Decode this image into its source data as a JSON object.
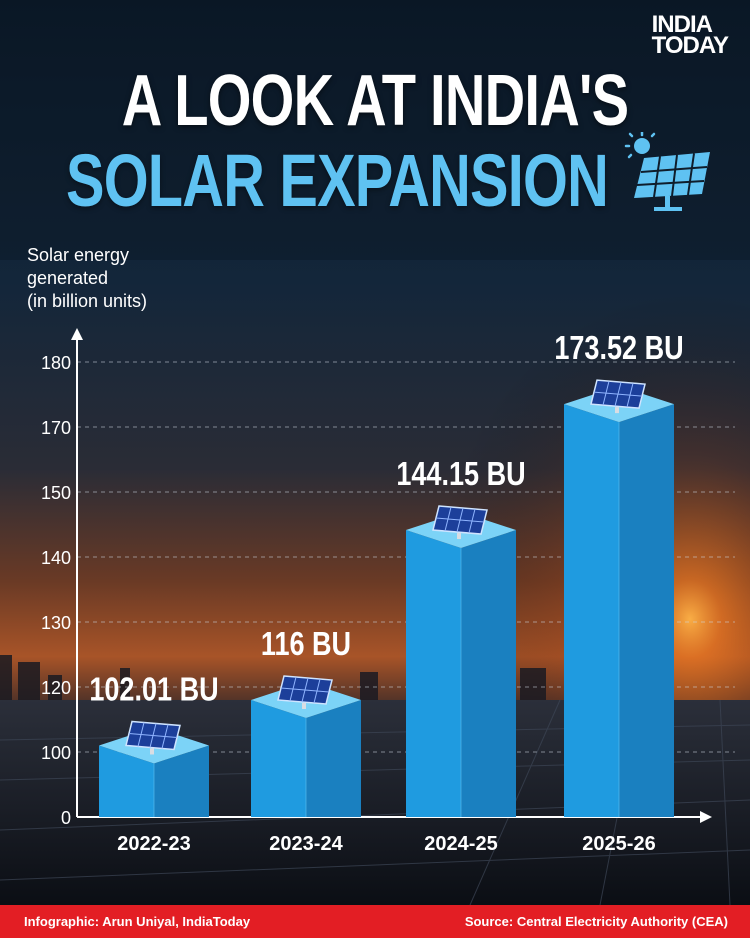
{
  "brand": {
    "line1": "INDIA",
    "line2": "TODAY"
  },
  "header": {
    "title_line1": "A LOOK AT INDIA'S",
    "title_line2": "SOLAR EXPANSION",
    "icon": "solar-panel-sun-icon"
  },
  "colors": {
    "title_accent": "#5fc2f2",
    "bar_front": "#1f9be0",
    "bar_side": "#1a80c0",
    "bar_top": "#7cd3f7",
    "footer": "#e31e24",
    "grid": "#cfd8e3"
  },
  "chart_data": {
    "type": "bar",
    "title": "A LOOK AT INDIA'S SOLAR EXPANSION",
    "ylabel_lines": [
      "Solar energy",
      "generated",
      "(in billion units)"
    ],
    "xlabel": "",
    "categories": [
      "2022-23",
      "2023-24",
      "2024-25",
      "2025-26"
    ],
    "values": [
      102.01,
      116,
      144.15,
      173.52
    ],
    "data_labels": [
      "102.01 BU",
      "116 BU",
      "144.15 BU",
      "173.52 BU"
    ],
    "yticks": [
      "0",
      "100",
      "120",
      "130",
      "140",
      "150",
      "170",
      "180"
    ],
    "ytick_values": [
      0,
      100,
      120,
      130,
      140,
      150,
      170,
      180
    ],
    "axis_note": "broken y-axis: ticks unevenly spaced",
    "grid": true
  },
  "footer": {
    "credit": "Infographic: Arun Uniyal, IndiaToday",
    "source": "Source: Central Electricity Authority (CEA)"
  }
}
